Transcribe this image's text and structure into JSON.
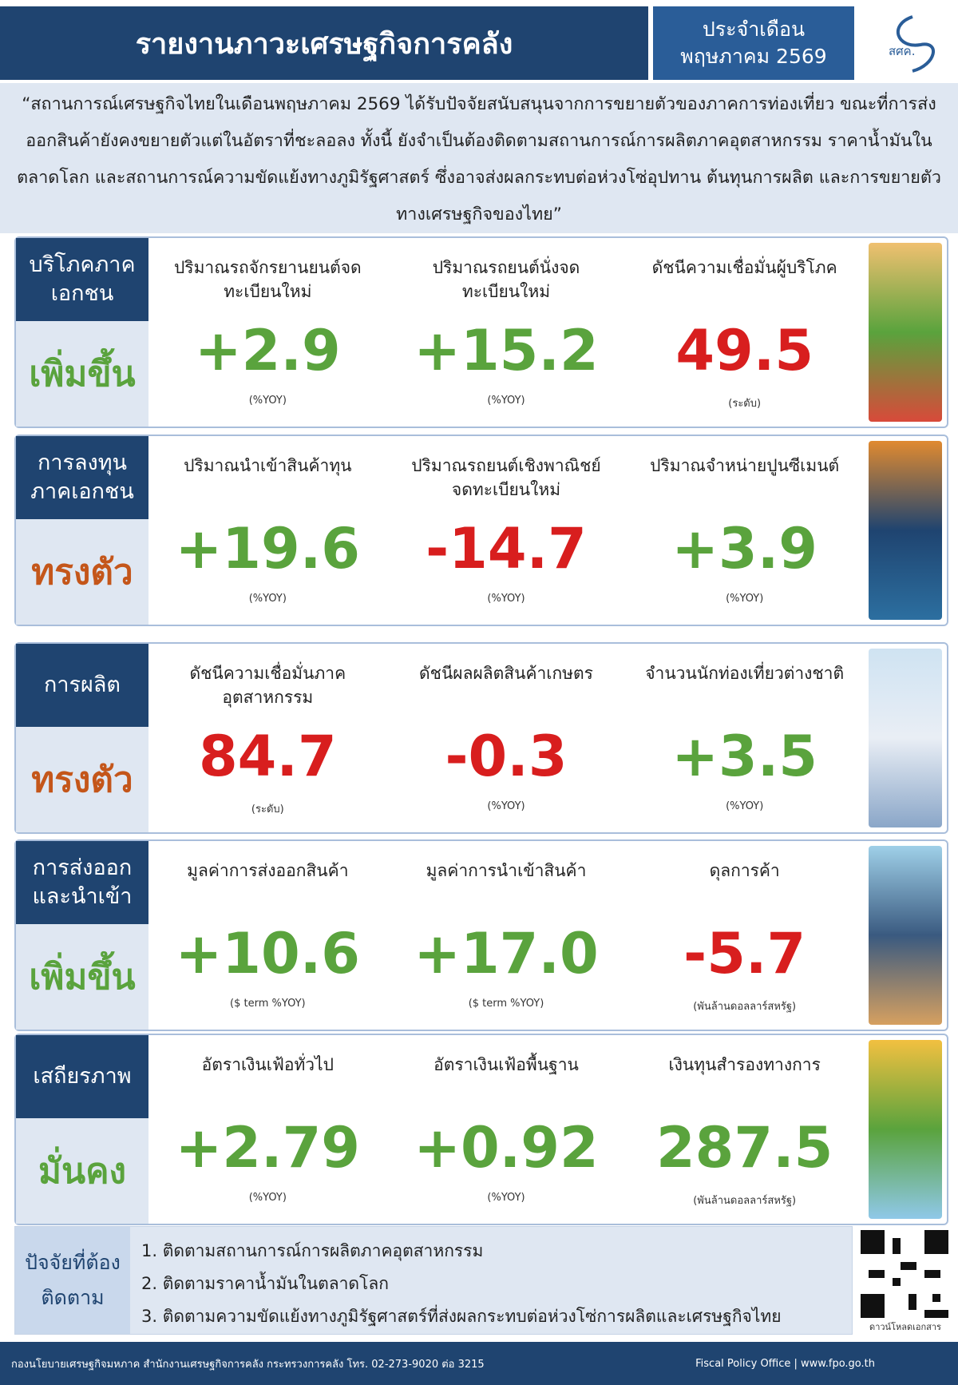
{
  "header": {
    "title": "รายงานภาวะเศรษฐกิจการคลัง",
    "period_label": "ประจำเดือน",
    "period": "พฤษภาคม 2569",
    "logo": "สศค."
  },
  "summary": "“สถานการณ์เศรษฐกิจไทยในเดือนพฤษภาคม 2569 ได้รับปัจจัยสนับสนุนจากการขยายตัวของภาคการท่องเที่ยว ขณะที่การส่งออกสินค้ายังคงขยายตัวแต่ในอัตราที่ชะลอลง ทั้งนี้ ยังจำเป็นต้องติดตามสถานการณ์การผลิตภาคอุตสาหกรรม ราคาน้ำมันในตลาดโลก และสถานการณ์ความขัดแย้งทางภูมิรัฐศาสตร์ ซึ่งอาจส่งผลกระทบต่อห่วงโซ่อุปทาน ต้นทุนการผลิต และการขยายตัวทางเศรษฐกิจของไทย”",
  "sections": [
    {
      "name": "บริโภคภาคเอกชน",
      "status": "เพิ่มขึ้น",
      "status_color": "#5aa33d",
      "items": [
        {
          "label": "ปริมาณรถจักรยานยนต์จดทะเบียนใหม่",
          "value": "+2.9",
          "unit": "(%YOY)",
          "color": "#5aa33d"
        },
        {
          "label": "ปริมาณรถยนต์นั่งจดทะเบียนใหม่",
          "value": "+15.2",
          "unit": "(%YOY)",
          "color": "#5aa33d"
        },
        {
          "label": "ดัชนีความเชื่อมั่นผู้บริโภค",
          "value": "49.5",
          "unit": "(ระดับ)",
          "color": "#d81e1e"
        }
      ]
    },
    {
      "name": "การลงทุนภาคเอกชน",
      "status": "ทรงตัว",
      "status_color": "#c4561a",
      "items": [
        {
          "label": "ปริมาณนำเข้าสินค้าทุน",
          "value": "+19.6",
          "unit": "(%YOY)",
          "color": "#5aa33d"
        },
        {
          "label": "ปริมาณรถยนต์เชิงพาณิชย์จดทะเบียนใหม่",
          "value": "-14.7",
          "unit": "(%YOY)",
          "color": "#d81e1e"
        },
        {
          "label": "ปริมาณจำหน่ายปูนซีเมนต์",
          "value": "+3.9",
          "unit": "(%YOY)",
          "color": "#5aa33d"
        }
      ]
    },
    {
      "name": "การผลิต",
      "status": "ทรงตัว",
      "status_color": "#c4561a",
      "items": [
        {
          "label": "ดัชนีความเชื่อมั่นภาคอุตสาหกรรม",
          "value": "84.7",
          "unit": "(ระดับ)",
          "color": "#d81e1e"
        },
        {
          "label": "ดัชนีผลผลิตสินค้าเกษตร",
          "value": "-0.3",
          "unit": "(%YOY)",
          "color": "#d81e1e"
        },
        {
          "label": "จำนวนนักท่องเที่ยวต่างชาติ",
          "value": "+3.5",
          "unit": "(%YOY)",
          "color": "#5aa33d"
        }
      ]
    },
    {
      "name": "การส่งออกและนำเข้า",
      "status": "เพิ่มขึ้น",
      "status_color": "#5aa33d",
      "items": [
        {
          "label": "มูลค่าการส่งออกสินค้า",
          "value": "+10.6",
          "unit": "($ term %YOY)",
          "color": "#5aa33d"
        },
        {
          "label": "มูลค่าการนำเข้าสินค้า",
          "value": "+17.0",
          "unit": "($ term %YOY)",
          "color": "#5aa33d"
        },
        {
          "label": "ดุลการค้า",
          "value": "-5.7",
          "unit": "(พันล้านดอลลาร์สหรัฐ)",
          "color": "#d81e1e"
        }
      ]
    },
    {
      "name": "เสถียรภาพ",
      "status": "มั่นคง",
      "status_color": "#5aa33d",
      "items": [
        {
          "label": "อัตราเงินเฟ้อทั่วไป",
          "value": "+2.79",
          "unit": "(%YOY)",
          "color": "#5aa33d"
        },
        {
          "label": "อัตราเงินเฟ้อพื้นฐาน",
          "value": "+0.92",
          "unit": "(%YOY)",
          "color": "#5aa33d"
        },
        {
          "label": "เงินทุนสำรองทางการ",
          "value": "287.5",
          "unit": "(พันล้านดอลลาร์สหรัฐ)",
          "color": "#5aa33d"
        }
      ]
    }
  ],
  "watch": {
    "title": "ปัจจัยที่ต้องติดตาม",
    "items": [
      "1. ติดตามสถานการณ์การผลิตภาคอุตสาหกรรม",
      "2. ติดตามราคาน้ำมันในตลาดโลก",
      "3. ติดตามความขัดแย้งทางภูมิรัฐศาสตร์ที่ส่งผลกระทบต่อห่วงโซ่การผลิตและเศรษฐกิจไทย"
    ],
    "qr_caption": "ดาวน์โหลดเอกสาร"
  },
  "footer": {
    "office": "กองนโยบายเศรษฐกิจมหภาค สำนักงานเศรษฐกิจการคลัง กระทรวงการคลัง โทร. 02-273-9020 ต่อ 3215",
    "site": "Fiscal Policy Office | www.fpo.go.th"
  }
}
